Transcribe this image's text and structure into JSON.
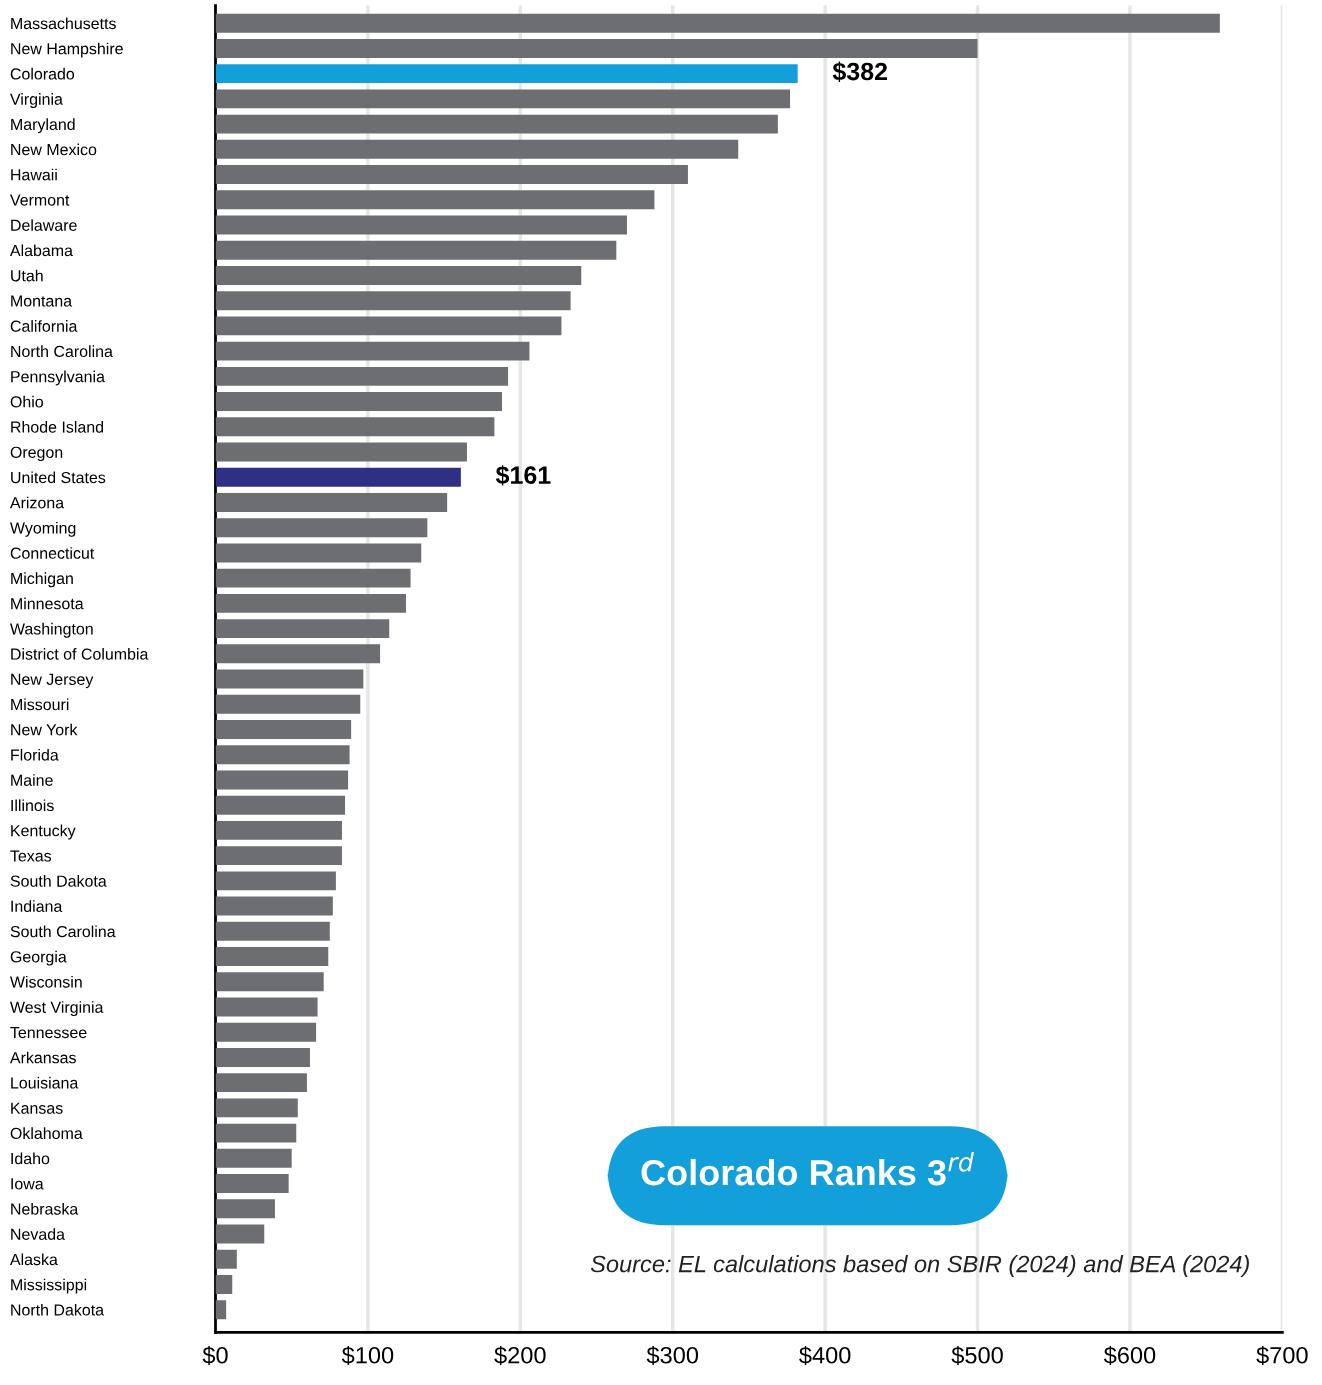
{
  "chart_data": {
    "type": "bar",
    "orientation": "horizontal",
    "categories": [
      "Massachusetts",
      "New Hampshire",
      "Colorado",
      "Virginia",
      "Maryland",
      "New Mexico",
      "Hawaii",
      "Vermont",
      "Delaware",
      "Alabama",
      "Utah",
      "Montana",
      "California",
      "North Carolina",
      "Pennsylvania",
      "Ohio",
      "Rhode Island",
      "Oregon",
      "United States",
      "Arizona",
      "Wyoming",
      "Connecticut",
      "Michigan",
      "Minnesota",
      "Washington",
      "District of Columbia",
      "New Jersey",
      "Missouri",
      "New York",
      "Florida",
      "Maine",
      "Illinois",
      "Kentucky",
      "Texas",
      "South Dakota",
      "Indiana",
      "South Carolina",
      "Georgia",
      "Wisconsin",
      "West Virginia",
      "Tennessee",
      "Arkansas",
      "Louisiana",
      "Kansas",
      "Oklahoma",
      "Idaho",
      "Iowa",
      "Nebraska",
      "Nevada",
      "Alaska",
      "Mississippi",
      "North Dakota"
    ],
    "values": [
      659,
      500,
      382,
      377,
      369,
      343,
      310,
      288,
      270,
      263,
      240,
      233,
      227,
      206,
      192,
      188,
      183,
      165,
      161,
      152,
      139,
      135,
      128,
      125,
      114,
      108,
      97,
      95,
      89,
      88,
      87,
      85,
      83,
      83,
      79,
      77,
      75,
      74,
      71,
      67,
      66,
      62,
      60,
      54,
      53,
      50,
      48,
      39,
      32,
      14,
      11,
      7
    ],
    "colors": [
      "#6d6e71",
      "#6d6e71",
      "#139fda",
      "#6d6e71",
      "#6d6e71",
      "#6d6e71",
      "#6d6e71",
      "#6d6e71",
      "#6d6e71",
      "#6d6e71",
      "#6d6e71",
      "#6d6e71",
      "#6d6e71",
      "#6d6e71",
      "#6d6e71",
      "#6d6e71",
      "#6d6e71",
      "#6d6e71",
      "#2e3183",
      "#6d6e71",
      "#6d6e71",
      "#6d6e71",
      "#6d6e71",
      "#6d6e71",
      "#6d6e71",
      "#6d6e71",
      "#6d6e71",
      "#6d6e71",
      "#6d6e71",
      "#6d6e71",
      "#6d6e71",
      "#6d6e71",
      "#6d6e71",
      "#6d6e71",
      "#6d6e71",
      "#6d6e71",
      "#6d6e71",
      "#6d6e71",
      "#6d6e71",
      "#6d6e71",
      "#6d6e71",
      "#6d6e71",
      "#6d6e71",
      "#6d6e71",
      "#6d6e71",
      "#6d6e71",
      "#6d6e71",
      "#6d6e71",
      "#6d6e71",
      "#6d6e71",
      "#6d6e71",
      "#6d6e71"
    ],
    "value_labels": [
      null,
      null,
      "$382",
      null,
      null,
      null,
      null,
      null,
      null,
      null,
      null,
      null,
      null,
      null,
      null,
      null,
      null,
      null,
      "$161",
      null,
      null,
      null,
      null,
      null,
      null,
      null,
      null,
      null,
      null,
      null,
      null,
      null,
      null,
      null,
      null,
      null,
      null,
      null,
      null,
      null,
      null,
      null,
      null,
      null,
      null,
      null,
      null,
      null,
      null,
      null,
      null,
      null
    ],
    "xlim": [
      0,
      700
    ],
    "xticks": [
      {
        "value": 0,
        "label": "$0"
      },
      {
        "value": 100,
        "label": "$100"
      },
      {
        "value": 200,
        "label": "$200"
      },
      {
        "value": 300,
        "label": "$300"
      },
      {
        "value": 400,
        "label": "$400"
      },
      {
        "value": 500,
        "label": "$500"
      },
      {
        "value": 600,
        "label": "$600"
      },
      {
        "value": 700,
        "label": "$700"
      }
    ],
    "grid": "x",
    "annotations": [
      "Colorado Ranks 3$^{rd}$",
      "Source: EL calculations based on SBIR (2024) and BEA (2024)"
    ]
  }
}
